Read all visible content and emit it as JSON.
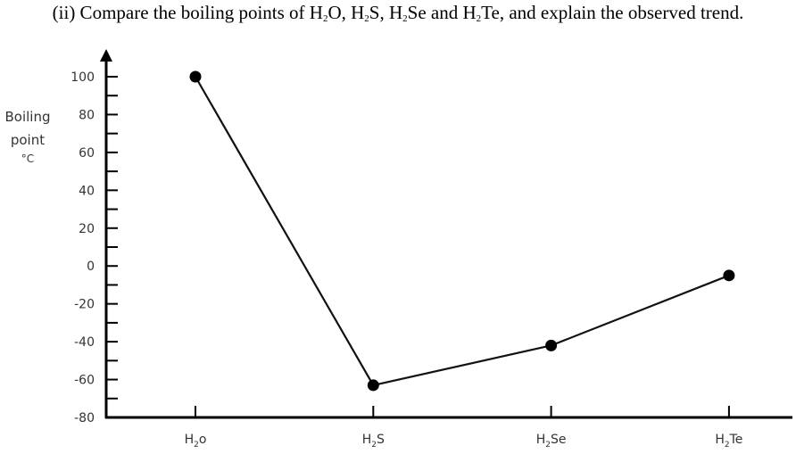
{
  "question": {
    "prefix": "(ii) Compare the boiling points of ",
    "compounds": [
      {
        "base": "H",
        "sub": "2",
        "rest": "O"
      },
      {
        "base": "H",
        "sub": "2",
        "rest": "S"
      },
      {
        "base": "H",
        "sub": "2",
        "rest": "Se"
      },
      {
        "base": "H",
        "sub": "2",
        "rest": "Te"
      }
    ],
    "sep1": ", ",
    "sep2": ", ",
    "sep3": " and ",
    "suffix": ", and explain the observed trend."
  },
  "chart_data": {
    "type": "line",
    "title": "",
    "xlabel": "",
    "ylabel_lines": [
      "Boiling",
      "point",
      "°C"
    ],
    "categories": [
      {
        "base": "H",
        "sub": "2",
        "rest": "o"
      },
      {
        "base": "H",
        "sub": "2",
        "rest": "S"
      },
      {
        "base": "H",
        "sub": "2",
        "rest": "Se"
      },
      {
        "base": "H",
        "sub": "2",
        "rest": "Te"
      }
    ],
    "values": [
      100,
      -63,
      -42,
      -5
    ],
    "ylim": [
      -80,
      100
    ],
    "yticks": [
      100,
      80,
      60,
      40,
      20,
      0,
      -20,
      -40,
      -60,
      -80
    ],
    "yticks_minor_step": 10,
    "grid": false,
    "colors": {
      "line": "#111111",
      "marker": "#000000",
      "axis": "#000000"
    }
  }
}
